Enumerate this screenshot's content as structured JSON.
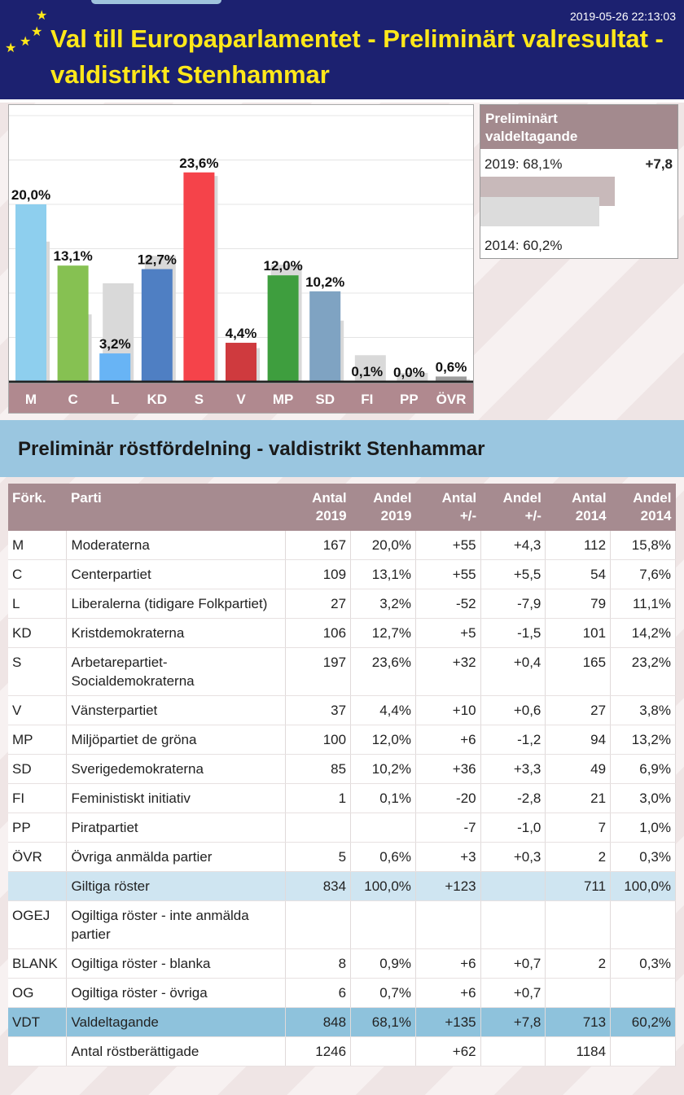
{
  "header": {
    "timestamp": "2019-05-26 22:13:03",
    "title": "Val till Europaparlamentet - Preliminärt valresultat - valdistrikt Stenhammar"
  },
  "chart_data": {
    "type": "bar",
    "categories": [
      "M",
      "C",
      "L",
      "KD",
      "S",
      "V",
      "MP",
      "SD",
      "FI",
      "PP",
      "ÖVR"
    ],
    "series": [
      {
        "name": "2019",
        "values": [
          20.0,
          13.1,
          3.2,
          12.7,
          23.6,
          4.4,
          12.0,
          10.2,
          0.1,
          0.0,
          0.6
        ],
        "labels": [
          "20,0%",
          "13,1%",
          "3,2%",
          "12,7%",
          "23,6%",
          "4,4%",
          "12,0%",
          "10,2%",
          "0,1%",
          "0,0%",
          "0,6%"
        ]
      },
      {
        "name": "2014",
        "values": [
          15.8,
          7.6,
          11.1,
          14.2,
          23.2,
          3.8,
          13.2,
          6.9,
          3.0,
          1.0,
          0.3
        ]
      }
    ],
    "colors": [
      "#8ecfee",
      "#86c152",
      "#68b4f5",
      "#4f7fc3",
      "#f5434a",
      "#cf3a3e",
      "#3e9e3e",
      "#7fa3c2",
      "#9e9e9e",
      "#9e9e9e",
      "#9e9e9e"
    ],
    "shadow_color": "#d9d9d9",
    "ylim": [
      0,
      25
    ]
  },
  "turnout": {
    "title": "Preliminärt valdeltagande",
    "label_2019": "2019: 68,1%",
    "value_2019": 68.1,
    "change": "+7,8",
    "label_2014": "2014: 60,2%",
    "value_2014": 60.2
  },
  "section_title": "Preliminär röstfördelning - valdistrikt Stenhammar",
  "table": {
    "headers": [
      {
        "line1": "Förk.",
        "line2": ""
      },
      {
        "line1": "Parti",
        "line2": ""
      },
      {
        "line1": "Antal",
        "line2": "2019"
      },
      {
        "line1": "Andel",
        "line2": "2019"
      },
      {
        "line1": "Antal",
        "line2": "+/-"
      },
      {
        "line1": "Andel",
        "line2": "+/-"
      },
      {
        "line1": "Antal",
        "line2": "2014"
      },
      {
        "line1": "Andel",
        "line2": "2014"
      }
    ],
    "rows": [
      {
        "abbr": "M",
        "party": "Moderaterna",
        "n19": "167",
        "p19": "20,0%",
        "dn": "+55",
        "dp": "+4,3",
        "n14": "112",
        "p14": "15,8%",
        "style": ""
      },
      {
        "abbr": "C",
        "party": "Centerpartiet",
        "n19": "109",
        "p19": "13,1%",
        "dn": "+55",
        "dp": "+5,5",
        "n14": "54",
        "p14": "7,6%",
        "style": ""
      },
      {
        "abbr": "L",
        "party": "Liberalerna (tidigare Folkpartiet)",
        "n19": "27",
        "p19": "3,2%",
        "dn": "-52",
        "dp": "-7,9",
        "n14": "79",
        "p14": "11,1%",
        "style": ""
      },
      {
        "abbr": "KD",
        "party": "Kristdemokraterna",
        "n19": "106",
        "p19": "12,7%",
        "dn": "+5",
        "dp": "-1,5",
        "n14": "101",
        "p14": "14,2%",
        "style": ""
      },
      {
        "abbr": "S",
        "party": "Arbetarepartiet-Socialdemokraterna",
        "n19": "197",
        "p19": "23,6%",
        "dn": "+32",
        "dp": "+0,4",
        "n14": "165",
        "p14": "23,2%",
        "style": ""
      },
      {
        "abbr": "V",
        "party": "Vänsterpartiet",
        "n19": "37",
        "p19": "4,4%",
        "dn": "+10",
        "dp": "+0,6",
        "n14": "27",
        "p14": "3,8%",
        "style": ""
      },
      {
        "abbr": "MP",
        "party": "Miljöpartiet de gröna",
        "n19": "100",
        "p19": "12,0%",
        "dn": "+6",
        "dp": "-1,2",
        "n14": "94",
        "p14": "13,2%",
        "style": ""
      },
      {
        "abbr": "SD",
        "party": "Sverigedemokraterna",
        "n19": "85",
        "p19": "10,2%",
        "dn": "+36",
        "dp": "+3,3",
        "n14": "49",
        "p14": "6,9%",
        "style": ""
      },
      {
        "abbr": "FI",
        "party": "Feministiskt initiativ",
        "n19": "1",
        "p19": "0,1%",
        "dn": "-20",
        "dp": "-2,8",
        "n14": "21",
        "p14": "3,0%",
        "style": ""
      },
      {
        "abbr": "PP",
        "party": "Piratpartiet",
        "n19": "",
        "p19": "",
        "dn": "-7",
        "dp": "-1,0",
        "n14": "7",
        "p14": "1,0%",
        "style": ""
      },
      {
        "abbr": "ÖVR",
        "party": "Övriga anmälda partier",
        "n19": "5",
        "p19": "0,6%",
        "dn": "+3",
        "dp": "+0,3",
        "n14": "2",
        "p14": "0,3%",
        "style": ""
      },
      {
        "abbr": "",
        "party": "Giltiga röster",
        "n19": "834",
        "p19": "100,0%",
        "dn": "+123",
        "dp": "",
        "n14": "711",
        "p14": "100,0%",
        "style": "valid"
      },
      {
        "abbr": "OGEJ",
        "party": "Ogiltiga röster - inte anmälda partier",
        "n19": "",
        "p19": "",
        "dn": "",
        "dp": "",
        "n14": "",
        "p14": "",
        "style": ""
      },
      {
        "abbr": "BLANK",
        "party": "Ogiltiga röster - blanka",
        "n19": "8",
        "p19": "0,9%",
        "dn": "+6",
        "dp": "+0,7",
        "n14": "2",
        "p14": "0,3%",
        "style": ""
      },
      {
        "abbr": "OG",
        "party": "Ogiltiga röster - övriga",
        "n19": "6",
        "p19": "0,7%",
        "dn": "+6",
        "dp": "+0,7",
        "n14": "",
        "p14": "",
        "style": ""
      },
      {
        "abbr": "VDT",
        "party": "Valdeltagande",
        "n19": "848",
        "p19": "68,1%",
        "dn": "+135",
        "dp": "+7,8",
        "n14": "713",
        "p14": "60,2%",
        "style": "vdt"
      },
      {
        "abbr": "",
        "party": "Antal röstberättigade",
        "n19": "1246",
        "p19": "",
        "dn": "+62",
        "dp": "",
        "n14": "1184",
        "p14": "",
        "style": ""
      }
    ]
  }
}
